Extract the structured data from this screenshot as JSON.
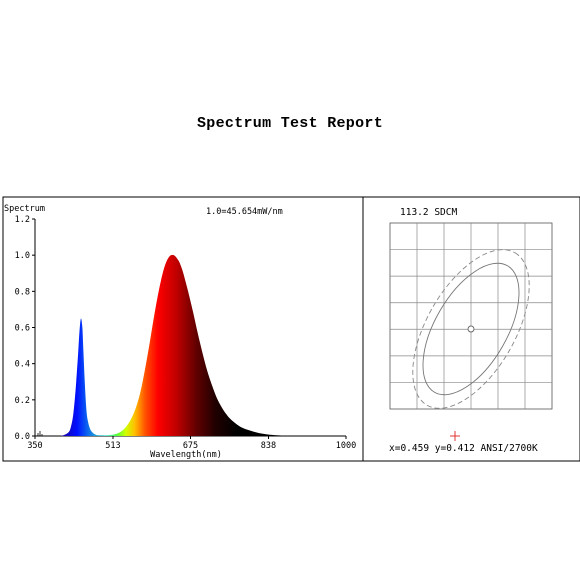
{
  "report": {
    "title": "Spectrum Test Report"
  },
  "chart_data": [
    {
      "type": "area",
      "title": "",
      "ylabel": "Spectrum",
      "xlabel": "Wavelength(nm)",
      "annotation": "1.0=45.654mW/nm",
      "xlim": [
        350,
        1000
      ],
      "ylim": [
        0,
        1.2
      ],
      "xticks": [
        350,
        513,
        675,
        838,
        1000
      ],
      "xtick_labels": [
        "350",
        "513",
        "675",
        "838",
        "1000"
      ],
      "yticks": [
        0,
        0.2,
        0.4,
        0.6,
        0.8,
        1.0,
        1.2
      ],
      "ytick_labels": [
        "0.0",
        "0.2",
        "0.4",
        "0.6",
        "0.8",
        "1.0",
        "1.2"
      ],
      "grid": false,
      "series": [
        {
          "x": [
            350,
            380,
            400,
            410,
            420,
            425,
            430,
            435,
            440,
            443,
            446,
            449,
            451,
            454,
            457,
            460,
            465,
            470,
            475,
            480,
            490,
            500,
            510,
            520,
            530,
            540,
            550,
            560,
            570,
            580,
            590,
            600,
            610,
            620,
            630,
            640,
            650,
            655,
            660,
            665,
            670,
            680,
            690,
            700,
            710,
            720,
            730,
            740,
            750,
            760,
            780,
            800,
            820,
            850,
            900,
            1000
          ],
          "y": [
            0.0,
            0.0,
            0.0,
            0.005,
            0.02,
            0.05,
            0.12,
            0.26,
            0.45,
            0.58,
            0.65,
            0.6,
            0.48,
            0.3,
            0.16,
            0.09,
            0.04,
            0.02,
            0.01,
            0.005,
            0.004,
            0.004,
            0.006,
            0.012,
            0.025,
            0.05,
            0.09,
            0.15,
            0.24,
            0.37,
            0.52,
            0.68,
            0.82,
            0.93,
            0.99,
            1.0,
            0.97,
            0.94,
            0.9,
            0.85,
            0.8,
            0.69,
            0.57,
            0.46,
            0.36,
            0.28,
            0.21,
            0.16,
            0.12,
            0.09,
            0.05,
            0.03,
            0.015,
            0.005,
            0.001,
            0.0
          ]
        }
      ]
    },
    {
      "type": "scatter",
      "title": "113.2 SDCM",
      "x_value": 0.459,
      "y_value": 0.412,
      "readout": "x=0.459 y=0.412 ANSI/2700K",
      "grid": true
    }
  ]
}
